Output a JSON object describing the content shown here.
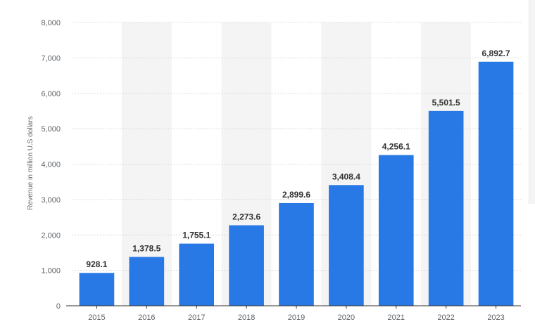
{
  "chart_data": {
    "type": "bar",
    "title": "",
    "xlabel": "",
    "ylabel": "Revenue in million U.S dollars",
    "categories": [
      "2015",
      "2016",
      "2017",
      "2018",
      "2019",
      "2020",
      "2021",
      "2022",
      "2023"
    ],
    "values": [
      928.1,
      1378.5,
      1755.1,
      2273.6,
      2899.6,
      3408.4,
      4256.1,
      5501.5,
      6892.7
    ],
    "data_labels": [
      "928.1",
      "1,378.5",
      "1,755.1",
      "2,273.6",
      "2,899.6",
      "3,408.4",
      "4,256.1",
      "5,501.5",
      "6,892.7"
    ],
    "ylim": [
      0,
      8000
    ],
    "yticks": [
      0,
      1000,
      2000,
      3000,
      4000,
      5000,
      6000,
      7000,
      8000
    ],
    "ytick_labels": [
      "0",
      "1,000",
      "2,000",
      "3,000",
      "4,000",
      "5,000",
      "6,000",
      "7,000",
      "8,000"
    ],
    "grid": true,
    "legend": "none",
    "colors": {
      "bar": "#2878e6",
      "band": "#f4f4f4",
      "grid": "#d9d9d9",
      "axis": "#333333"
    }
  }
}
